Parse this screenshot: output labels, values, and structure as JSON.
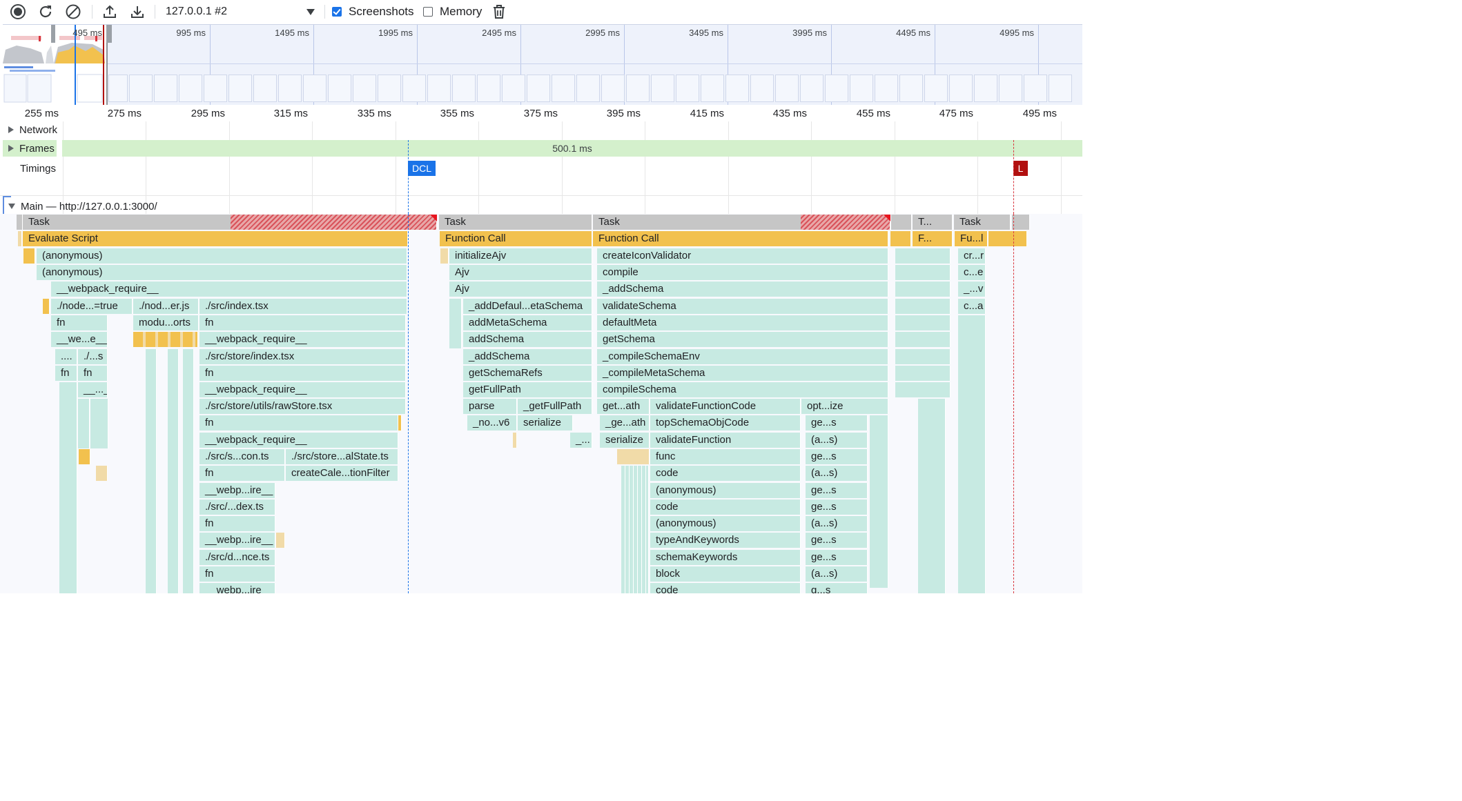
{
  "toolbar": {
    "target": "127.0.0.1 #2",
    "screenshots_label": "Screenshots",
    "screenshots_checked": true,
    "memory_label": "Memory",
    "memory_checked": false,
    "icons": [
      "record-icon",
      "reload-icon",
      "clear-icon",
      "upload-icon",
      "download-icon",
      "trash-icon"
    ]
  },
  "overview": {
    "ticks": [
      "495 ms",
      "995 ms",
      "1495 ms",
      "1995 ms",
      "2495 ms",
      "2995 ms",
      "3495 ms",
      "3995 ms",
      "4495 ms",
      "4995 ms"
    ]
  },
  "ruler": {
    "ticks": [
      "255 ms",
      "275 ms",
      "295 ms",
      "315 ms",
      "335 ms",
      "355 ms",
      "375 ms",
      "395 ms",
      "415 ms",
      "435 ms",
      "455 ms",
      "475 ms",
      "495 ms"
    ]
  },
  "tracks": {
    "network": "Network",
    "frames": "Frames",
    "frames_duration": "500.1 ms",
    "timings": "Timings",
    "dcl": "DCL",
    "load": "L",
    "main": "Main — http://127.0.0.1:3000/"
  },
  "colors": {
    "task": "#c6c6c6",
    "script": "#f2c14e",
    "js": "#c7eae2",
    "dcl": "#1a73e8",
    "load": "#b1100f",
    "frames": "#d4f0cc"
  },
  "flame": {
    "row0": [
      "Task",
      "Task",
      "Task",
      "T...",
      "Task"
    ],
    "row1": [
      "Evaluate Script",
      "Function Call",
      "Function Call",
      "F...",
      "Fu...l"
    ],
    "row2": [
      "(anonymous)",
      "initializeAjv",
      "createIconValidator",
      "cr...r"
    ],
    "row3": [
      "(anonymous)",
      "Ajv",
      "compile",
      "c...e"
    ],
    "row4": [
      "__webpack_require__",
      "Ajv",
      "_addSchema",
      "_...v"
    ],
    "row5": [
      "./node...=true",
      "./nod...er.js",
      "./src/index.tsx",
      "_addDefaul...etaSchema",
      "validateSchema",
      "c...a"
    ],
    "row6": [
      "fn",
      "modu...orts",
      "fn",
      "addMetaSchema",
      "defaultMeta"
    ],
    "row7": [
      "__we...e__",
      "__webpack_require__",
      "addSchema",
      "getSchema"
    ],
    "row8": [
      "....",
      "./...s",
      "./src/store/index.tsx",
      "_addSchema",
      "_compileSchemaEnv"
    ],
    "row9": [
      "fn",
      "fn",
      "fn",
      "getSchemaRefs",
      "_compileMetaSchema"
    ],
    "row10": [
      "__..._",
      "__webpack_require__",
      "getFullPath",
      "compileSchema"
    ],
    "row11": [
      "./src/store/utils/rawStore.tsx",
      "parse",
      "_getFullPath",
      "get...ath",
      "validateFunctionCode",
      "opt...ize"
    ],
    "row12": [
      "fn",
      "_no...v6",
      "serialize",
      "_ge...ath",
      "topSchemaObjCode",
      "ge...s"
    ],
    "row13": [
      "__webpack_require__",
      "_...",
      "serialize",
      "validateFunction",
      "(a...s)"
    ],
    "row14": [
      "./src/s...con.ts",
      "./src/store...alState.ts",
      "func",
      "ge...s"
    ],
    "row15": [
      "fn",
      "createCale...tionFilter",
      "code",
      "(a...s)"
    ],
    "row16": [
      "__webp...ire__",
      "(anonymous)",
      "ge...s"
    ],
    "row17": [
      "./src/...dex.ts",
      "code",
      "ge...s"
    ],
    "row18": [
      "fn",
      "(anonymous)",
      "(a...s)"
    ],
    "row19": [
      "__webp...ire__",
      "typeAndKeywords",
      "ge...s"
    ],
    "row20": [
      "./src/d...nce.ts",
      "schemaKeywords",
      "ge...s"
    ],
    "row21": [
      "fn",
      "block",
      "(a...s)"
    ],
    "row22": [
      "__webp...ire__",
      "code",
      "g...s"
    ]
  }
}
